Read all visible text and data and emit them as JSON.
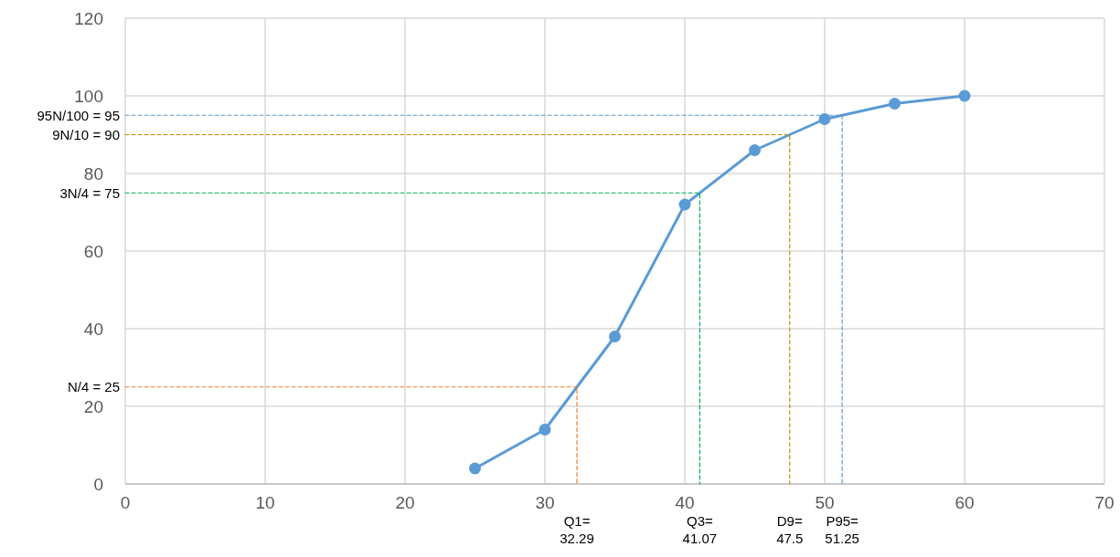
{
  "chart_data": {
    "type": "line",
    "xlim": [
      0,
      70
    ],
    "xticks": [
      0,
      10,
      20,
      30,
      40,
      50,
      60,
      70
    ],
    "ylim": [
      0,
      120
    ],
    "yticks": [
      0,
      20,
      40,
      60,
      80,
      100,
      120
    ],
    "grid": true,
    "series": [
      {
        "color": "#5b9bd5",
        "x": [
          25,
          30,
          35,
          40,
          45,
          50,
          55,
          60
        ],
        "values": [
          4,
          14,
          38,
          72,
          86,
          94,
          98,
          100
        ],
        "marker": "circle",
        "line_style": "solid"
      },
      {
        "color": "#ed7d31",
        "x": [
          0,
          32.29,
          32.29
        ],
        "values": [
          25,
          25,
          0
        ],
        "marker": "none",
        "line_style": "dashed"
      },
      {
        "color": "#00b050",
        "x": [
          0,
          41.07,
          41.07
        ],
        "values": [
          75,
          75,
          0
        ],
        "marker": "none",
        "line_style": "dashed"
      },
      {
        "color": "#bf9000",
        "x": [
          0,
          47.5,
          47.5
        ],
        "values": [
          90,
          90,
          0
        ],
        "marker": "none",
        "line_style": "dashed"
      },
      {
        "color": "#5b9bd5",
        "x": [
          0,
          51.25,
          51.25
        ],
        "values": [
          95,
          95,
          0
        ],
        "marker": "none",
        "line_style": "dashed"
      }
    ],
    "annotations": [
      {
        "text": "N/4 = 25",
        "x": 0,
        "y": 25
      },
      {
        "text": "3N/4 = 75",
        "x": 0,
        "y": 75
      },
      {
        "text": "9N/10 = 90",
        "x": 0,
        "y": 90
      },
      {
        "text": "95N/100 = 95",
        "x": 0,
        "y": 95
      },
      {
        "text": "Q1=\n32.29",
        "x": 32.29,
        "y": 0
      },
      {
        "text": "Q3=\n41.07",
        "x": 41.07,
        "y": 0
      },
      {
        "text": "D9=\n47.5",
        "x": 47.5,
        "y": 0
      },
      {
        "text": "P95=\n51.25",
        "x": 51.25,
        "y": 0
      }
    ]
  }
}
